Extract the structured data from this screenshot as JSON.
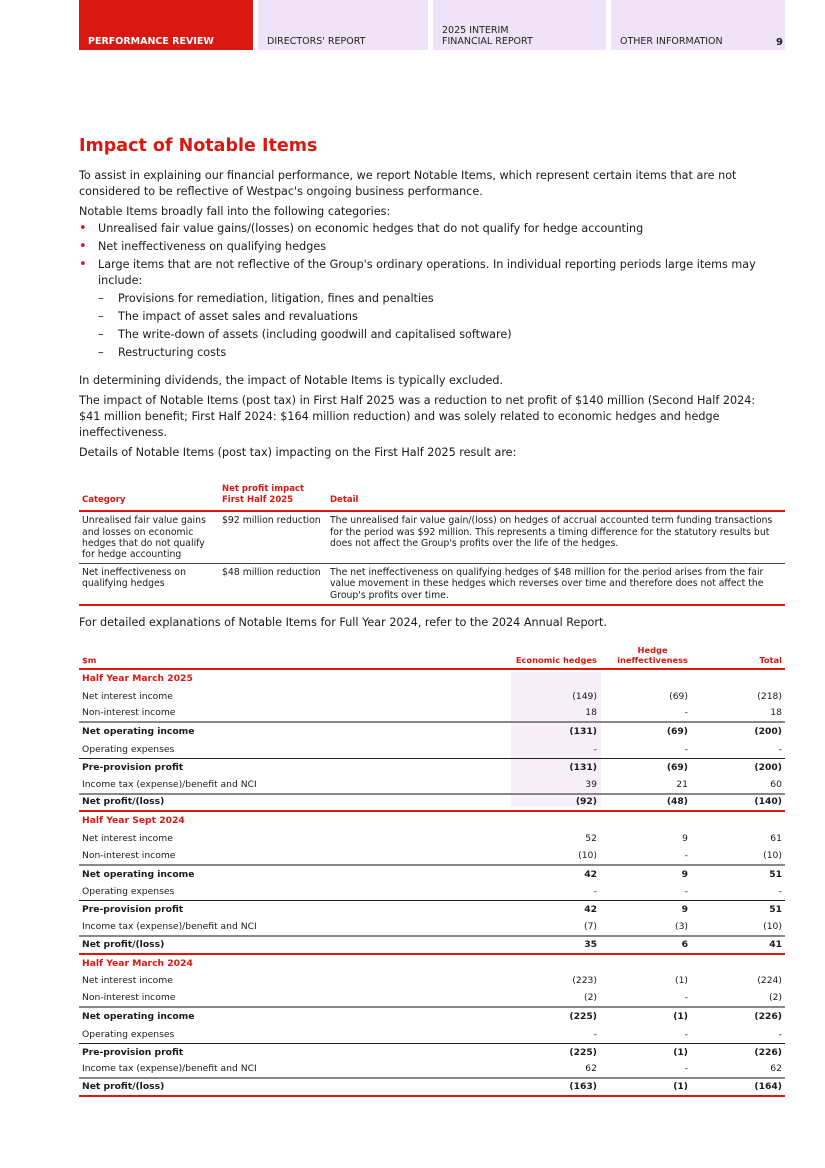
{
  "header": {
    "tabs": [
      "PERFORMANCE REVIEW",
      "DIRECTORS' REPORT",
      "2025 INTERIM\nFINANCIAL REPORT",
      "OTHER INFORMATION"
    ],
    "page": "9",
    "accent": "#da1710",
    "tab_bg": "#f1e3f7"
  },
  "title": "Impact of Notable Items",
  "intro": "To assist in explaining our financial performance, we report Notable Items, which represent certain items that are not considered to be reflective of Westpac's ongoing business performance.",
  "categories_intro": "Notable Items broadly fall into the following categories:",
  "bullets": [
    "Unrealised fair value gains/(losses) on economic hedges that do not qualify for hedge accounting",
    "Net ineffectiveness on qualifying hedges",
    "Large items that are not reflective of the Group's ordinary operations. In individual reporting periods large items may include:"
  ],
  "sub_bullets": [
    "Provisions for remediation, litigation, fines and penalties",
    "The impact of asset sales and revaluations",
    "The write-down of assets (including goodwill and capitalised software)",
    "Restructuring costs"
  ],
  "dividends": "In determining dividends, the impact of Notable Items is typically excluded.",
  "impact": "The impact of Notable Items (post tax) in First Half 2025 was a reduction to net profit of $140 million (Second Half 2024: $41 million benefit; First Half 2024: $164 million reduction) and was solely related to economic hedges and hedge ineffectiveness.",
  "details_intro": "Details of Notable Items (post tax) impacting on the First Half 2025 result are:",
  "table1": {
    "headers": [
      "Category",
      "Net profit impact First Half 2025",
      "Detail"
    ],
    "rows": [
      [
        "Unrealised fair value gains and losses on economic hedges that do not qualify for hedge accounting",
        "$92 million reduction",
        "The unrealised fair value gain/(loss) on hedges of accrual accounted term funding transactions for the period was $92 million. This represents a timing difference for the statutory results but does not affect the Group's profits over the life of the hedges."
      ],
      [
        "Net ineffectiveness on qualifying hedges",
        "$48 million reduction",
        "The net ineffectiveness on qualifying hedges of $48 million for the period arises from the fair value movement in these hedges which reverses over time and therefore does not affect the Group's profits over time."
      ]
    ]
  },
  "note": "For detailed explanations of Notable Items for Full Year 2024, refer to the 2024 Annual Report.",
  "table2": {
    "headers": [
      "$m",
      "Economic hedges",
      "Hedge\nineffectiveness",
      "Total"
    ],
    "sections": [
      {
        "title": "Half Year March 2025",
        "rows": [
          [
            "Net interest income",
            "(149)",
            "(69)",
            "(218)"
          ],
          [
            "Non-interest income",
            "18",
            "-",
            "18"
          ],
          [
            "Net operating income",
            "(131)",
            "(69)",
            "(200)"
          ],
          [
            "Operating expenses",
            "-",
            "-",
            "-"
          ],
          [
            "Pre-provision profit",
            "(131)",
            "(69)",
            "(200)"
          ],
          [
            "Income tax (expense)/benefit and NCI",
            "39",
            "21",
            "60"
          ],
          [
            "Net profit/(loss)",
            "(92)",
            "(48)",
            "(140)"
          ]
        ]
      },
      {
        "title": "Half Year Sept 2024",
        "rows": [
          [
            "Net interest income",
            "52",
            "9",
            "61"
          ],
          [
            "Non-interest income",
            "(10)",
            "-",
            "(10)"
          ],
          [
            "Net operating income",
            "42",
            "9",
            "51"
          ],
          [
            "Operating expenses",
            "-",
            "-",
            "-"
          ],
          [
            "Pre-provision profit",
            "42",
            "9",
            "51"
          ],
          [
            "Income tax (expense)/benefit and NCI",
            "(7)",
            "(3)",
            "(10)"
          ],
          [
            "Net profit/(loss)",
            "35",
            "6",
            "41"
          ]
        ]
      },
      {
        "title": "Half Year March 2024",
        "rows": [
          [
            "Net interest income",
            "(223)",
            "(1)",
            "(224)"
          ],
          [
            "Non-interest income",
            "(2)",
            "-",
            "(2)"
          ],
          [
            "Net operating income",
            "(225)",
            "(1)",
            "(226)"
          ],
          [
            "Operating expenses",
            "-",
            "-",
            "-"
          ],
          [
            "Pre-provision profit",
            "(225)",
            "(1)",
            "(226)"
          ],
          [
            "Income tax (expense)/benefit and NCI",
            "62",
            "-",
            "62"
          ],
          [
            "Net profit/(loss)",
            "(163)",
            "(1)",
            "(164)"
          ]
        ]
      }
    ]
  }
}
